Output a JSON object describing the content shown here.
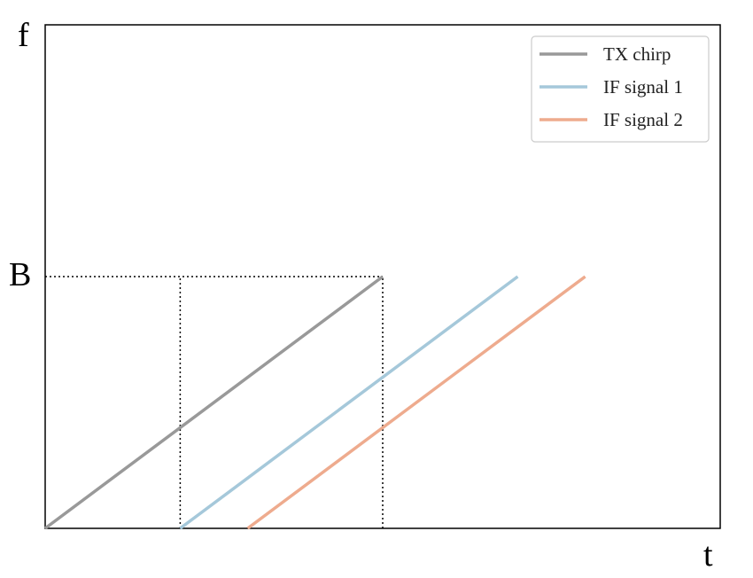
{
  "chart_data": {
    "type": "line",
    "xlabel": "t",
    "ylabel": "f",
    "ytick_label": "B",
    "xlim": [
      0,
      1
    ],
    "ylim": [
      0,
      1
    ],
    "y_marker": 0.5,
    "grid": false,
    "legend_position": "top-right",
    "series": [
      {
        "name": "TX chirp",
        "color": "#999999",
        "x": [
          0,
          0.5
        ],
        "y": [
          0,
          0.5
        ]
      },
      {
        "name": "IF signal 1",
        "color": "#a5c8da",
        "x": [
          0.2,
          0.7
        ],
        "y": [
          0,
          0.5
        ]
      },
      {
        "name": "IF signal 2",
        "color": "#eeab8e",
        "x": [
          0.3,
          0.8
        ],
        "y": [
          0,
          0.5
        ]
      }
    ],
    "reference_lines": [
      {
        "type": "horizontal",
        "y": 0.5,
        "x_from": 0,
        "x_to": 0.5,
        "style": "dotted"
      },
      {
        "type": "vertical",
        "x": 0.2,
        "y_from": 0,
        "y_to": 0.5,
        "style": "dotted"
      },
      {
        "type": "vertical",
        "x": 0.5,
        "y_from": 0,
        "y_to": 0.5,
        "style": "dotted"
      }
    ]
  }
}
